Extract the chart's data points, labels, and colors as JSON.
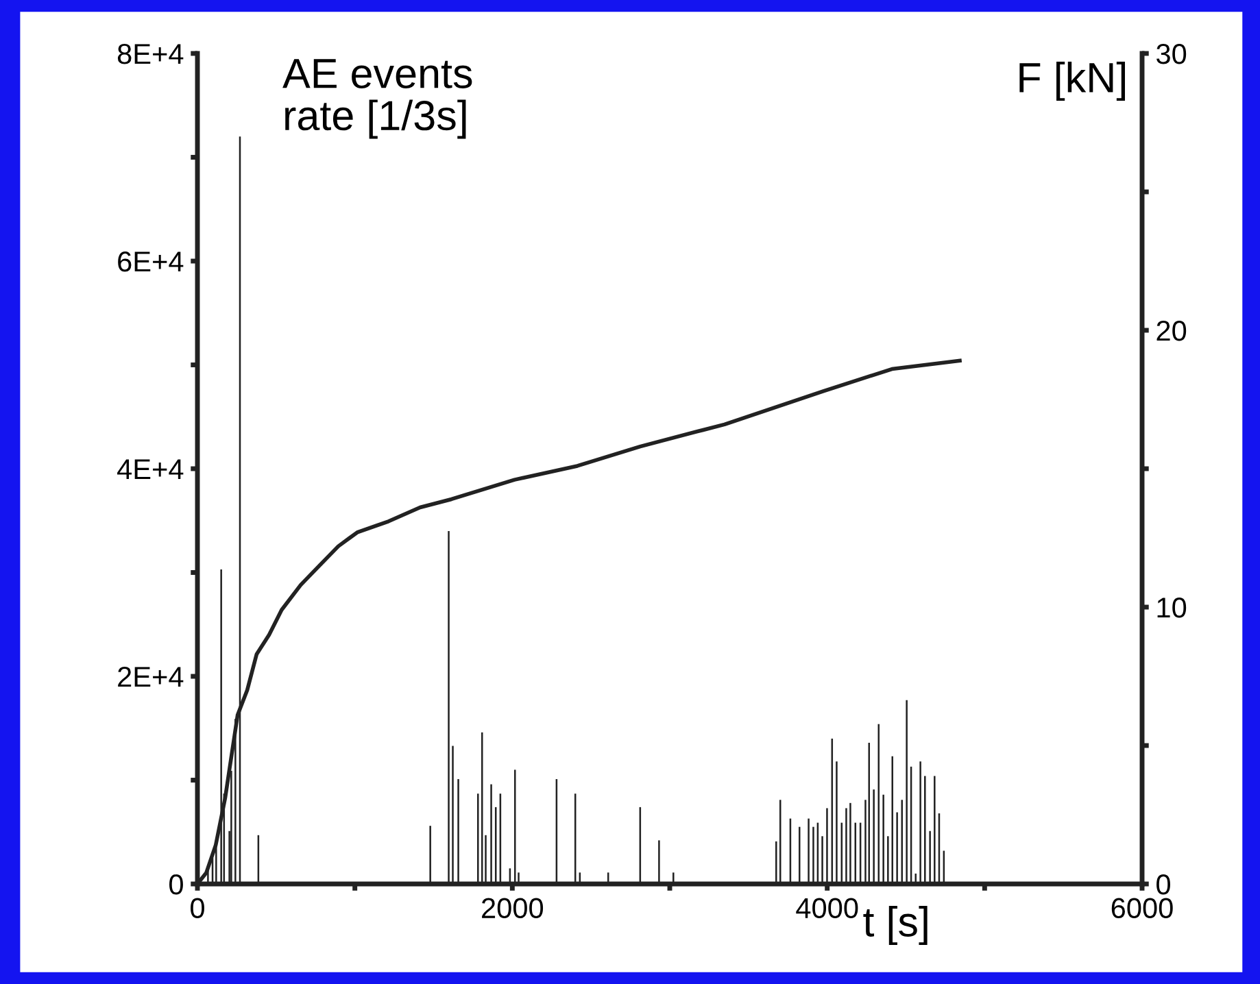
{
  "chart_data": {
    "type": "bar",
    "ylabel": "AE events\nrate [1/3s]",
    "y2label": "F [kN]",
    "xlabel": "t [s]",
    "xlim": [
      0,
      6000
    ],
    "xticks": [
      0,
      {
        "value": 1000,
        "label": null
      },
      2000,
      {
        "value": 3000,
        "label": null
      },
      4000,
      {
        "value": 5000,
        "label": null
      },
      6000
    ],
    "ylim": [
      0,
      80000
    ],
    "yticks": [
      {
        "value": 0,
        "label": "0"
      },
      {
        "value": 10000,
        "label": null
      },
      {
        "value": 20000,
        "label": "2E+4"
      },
      {
        "value": 30000,
        "label": null
      },
      {
        "value": 40000,
        "label": "4E+4"
      },
      {
        "value": 50000,
        "label": null
      },
      {
        "value": 60000,
        "label": "6E+4"
      },
      {
        "value": 70000,
        "label": null
      },
      {
        "value": 80000,
        "label": "8E+4"
      }
    ],
    "y2lim": [
      0,
      30
    ],
    "y2ticks": [
      0,
      {
        "value": 5,
        "label": null
      },
      10,
      {
        "value": 15,
        "label": null
      },
      20,
      {
        "value": 25,
        "label": null
      },
      30
    ],
    "grid": false,
    "legend": false,
    "series": [
      {
        "color": "#222222",
        "x": [
          67,
          96,
          119,
          151,
          169,
          203,
          215,
          241,
          270,
          387,
          1479,
          1596,
          1622,
          1657,
          1782,
          1808,
          1831,
          1866,
          1895,
          1924,
          1985,
          2017,
          2040,
          2281,
          2400,
          2429,
          2609,
          2812,
          2932,
          3023,
          3676,
          3702,
          3766,
          3824,
          3882,
          3912,
          3940,
          3969,
          3999,
          4031,
          4060,
          4092,
          4121,
          4147,
          4179,
          4211,
          4243,
          4266,
          4296,
          4327,
          4357,
          4386,
          4414,
          4444,
          4475,
          4505,
          4533,
          4562,
          4592,
          4621,
          4653,
          4682,
          4711,
          4741
        ],
        "values": [
          1500,
          2500,
          4100,
          30300,
          8700,
          5100,
          10900,
          15900,
          72000,
          4700,
          5600,
          34000,
          13300,
          10100,
          8700,
          14600,
          4700,
          9600,
          7400,
          8700,
          1500,
          11000,
          1100,
          10100,
          8700,
          1100,
          1100,
          7400,
          4200,
          1100,
          4100,
          8100,
          6300,
          5500,
          6300,
          5500,
          5900,
          4600,
          7300,
          14000,
          11800,
          5900,
          7300,
          7800,
          5900,
          5900,
          8100,
          13600,
          9100,
          15400,
          8600,
          4600,
          12300,
          6900,
          8100,
          17700,
          11300,
          1000,
          11800,
          10400,
          5100,
          10400,
          6800,
          3200
        ]
      },
      {
        "type": "line",
        "axis": "y2",
        "color": "#222222",
        "line_style": "solid",
        "marker": "none",
        "x": [
          0,
          56,
          116,
          176,
          255,
          316,
          376,
          455,
          535,
          656,
          775,
          895,
          1015,
          1214,
          1414,
          1614,
          2014,
          2413,
          2812,
          3212,
          3348,
          3975,
          4411,
          4842
        ],
        "values": [
          0,
          0.4,
          1.4,
          3.1,
          6.1,
          7.0,
          8.3,
          9.0,
          9.9,
          10.8,
          11.5,
          12.2,
          12.7,
          13.1,
          13.6,
          13.9,
          14.6,
          15.1,
          15.8,
          16.4,
          16.6,
          17.8,
          18.6,
          18.9
        ]
      }
    ]
  }
}
